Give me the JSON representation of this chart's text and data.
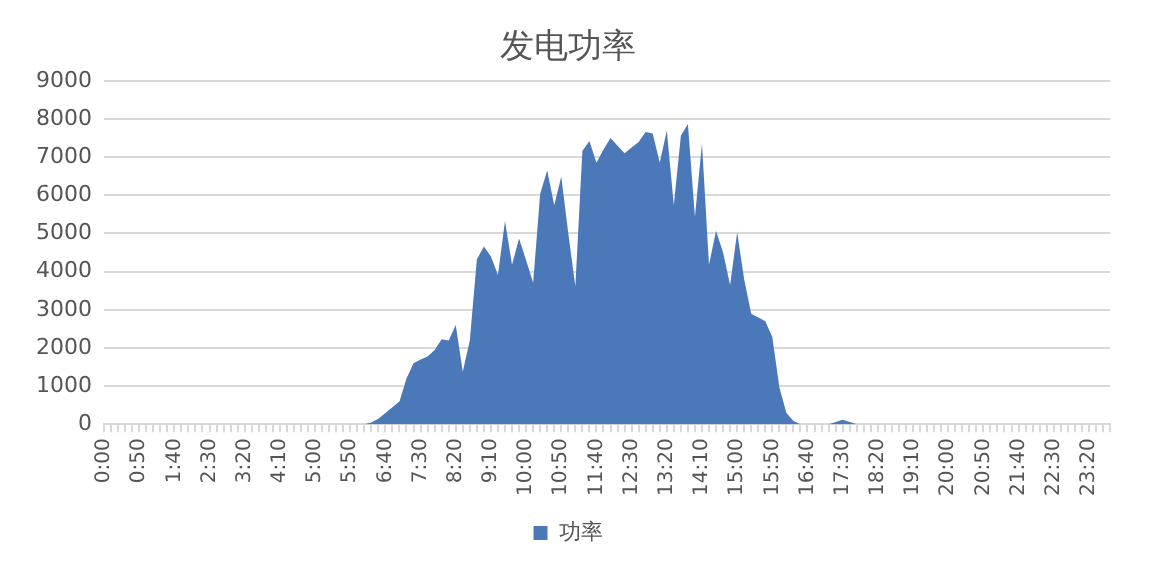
{
  "chart_data": {
    "type": "area",
    "title": "发电功率",
    "categories": [
      "0:00",
      null,
      null,
      null,
      null,
      "0:50",
      null,
      null,
      null,
      null,
      "1:40",
      null,
      null,
      null,
      null,
      "2:30",
      null,
      null,
      null,
      null,
      "3:20",
      null,
      null,
      null,
      null,
      "4:10",
      null,
      null,
      null,
      null,
      "5:00",
      null,
      null,
      null,
      null,
      "5:50",
      null,
      null,
      null,
      null,
      "6:40",
      null,
      null,
      null,
      null,
      "7:30",
      null,
      null,
      null,
      null,
      "8:20",
      null,
      null,
      null,
      null,
      "9:10",
      null,
      null,
      null,
      null,
      "10:00",
      null,
      null,
      null,
      null,
      "10:50",
      null,
      null,
      null,
      null,
      "11:40",
      null,
      null,
      null,
      null,
      "12:30",
      null,
      null,
      null,
      null,
      "13:20",
      null,
      null,
      null,
      null,
      "14:10",
      null,
      null,
      null,
      null,
      "15:00",
      null,
      null,
      null,
      null,
      "15:50",
      null,
      null,
      null,
      null,
      "16:40",
      null,
      null,
      null,
      null,
      "17:30",
      null,
      null,
      null,
      null,
      "18:20",
      null,
      null,
      null,
      null,
      "19:10",
      null,
      null,
      null,
      null,
      "20:00",
      null,
      null,
      null,
      null,
      "20:50",
      null,
      null,
      null,
      null,
      "21:40",
      null,
      null,
      null,
      null,
      "22:30",
      null,
      null,
      null,
      null,
      "23:20",
      null,
      null,
      null
    ],
    "series": [
      {
        "name": "功率",
        "color": "#4a78b8",
        "values": [
          0,
          0,
          0,
          0,
          0,
          0,
          0,
          0,
          0,
          0,
          0,
          0,
          0,
          0,
          0,
          0,
          0,
          0,
          0,
          0,
          0,
          0,
          0,
          0,
          0,
          0,
          0,
          0,
          0,
          0,
          0,
          0,
          0,
          0,
          0,
          0,
          0,
          0,
          50,
          150,
          300,
          450,
          600,
          1200,
          1600,
          1700,
          1780,
          1950,
          2230,
          2200,
          2600,
          1380,
          2200,
          4320,
          4660,
          4400,
          3910,
          5330,
          4180,
          4870,
          4300,
          3710,
          6040,
          6650,
          5740,
          6490,
          5000,
          3610,
          7160,
          7420,
          6850,
          7200,
          7500,
          7300,
          7100,
          7250,
          7400,
          7660,
          7620,
          6850,
          7700,
          5740,
          7560,
          7870,
          5430,
          7360,
          4180,
          5070,
          4500,
          3650,
          5030,
          3800,
          2900,
          2800,
          2700,
          2290,
          970,
          300,
          90,
          0,
          0,
          0,
          0,
          0,
          60,
          120,
          60,
          0,
          0,
          0,
          0,
          0,
          0,
          0,
          0,
          0,
          0,
          0,
          0,
          0,
          0,
          0,
          0,
          0,
          0,
          0,
          0,
          0,
          0,
          0,
          0,
          0,
          0,
          0,
          0,
          0,
          0,
          0,
          0,
          0,
          0,
          0,
          0,
          0
        ]
      }
    ],
    "ylim": [
      0,
      9000
    ],
    "yticks": [
      0,
      1000,
      2000,
      3000,
      4000,
      5000,
      6000,
      7000,
      8000,
      9000
    ],
    "grid": "y",
    "legend": "bottom",
    "marker": "none"
  }
}
